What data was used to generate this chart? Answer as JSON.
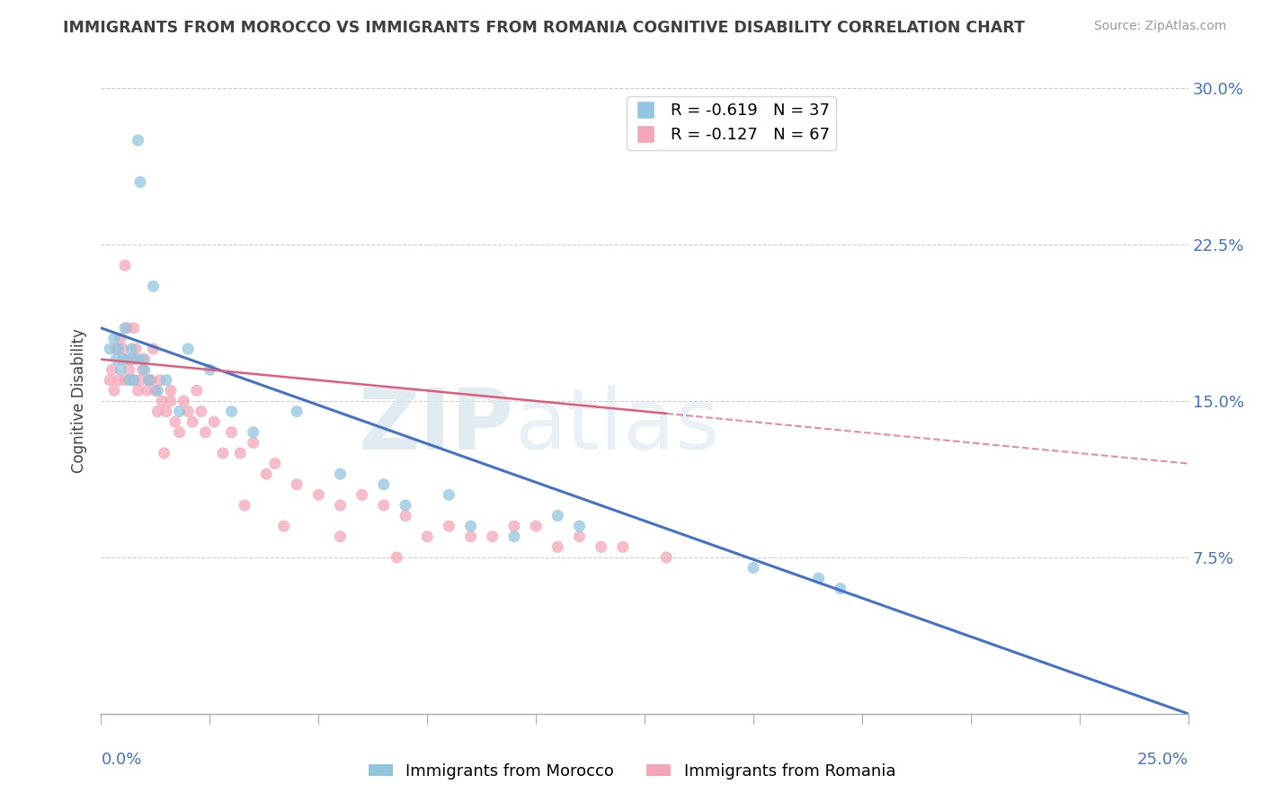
{
  "title": "IMMIGRANTS FROM MOROCCO VS IMMIGRANTS FROM ROMANIA COGNITIVE DISABILITY CORRELATION CHART",
  "source": "Source: ZipAtlas.com",
  "ylabel": "Cognitive Disability",
  "xlim": [
    0.0,
    25.0
  ],
  "ylim": [
    0.0,
    30.0
  ],
  "yticks_right": [
    7.5,
    15.0,
    22.5,
    30.0
  ],
  "ytick_labels_right": [
    "7.5%",
    "15.0%",
    "22.5%",
    "30.0%"
  ],
  "morocco_color": "#92c5de",
  "romania_color": "#f4a6b8",
  "morocco_line_color": "#4472c4",
  "romania_line_color": "#e05c7a",
  "morocco_label": "Immigrants from Morocco",
  "romania_label": "Immigrants from Romania",
  "morocco_R": -0.619,
  "morocco_N": 37,
  "romania_R": -0.127,
  "romania_N": 67,
  "morocco_line_y_start": 18.5,
  "morocco_line_y_end": 0.0,
  "romania_line_y_start": 17.0,
  "romania_line_y_end_solid": 13.5,
  "romania_line_x_solid_end": 13.0,
  "romania_line_y_end_dashed": 12.0,
  "grid_color": "#cccccc",
  "watermark_zip": "ZIP",
  "watermark_atlas": "atlas",
  "axis_label_color": "#4472c4",
  "title_color": "#404040",
  "morocco_x": [
    0.2,
    0.3,
    0.35,
    0.4,
    0.45,
    0.5,
    0.55,
    0.6,
    0.65,
    0.7,
    0.75,
    0.8,
    0.85,
    0.9,
    0.95,
    1.0,
    1.1,
    1.2,
    1.3,
    1.5,
    1.8,
    2.0,
    2.5,
    3.0,
    3.5,
    4.5,
    5.5,
    6.5,
    7.0,
    8.0,
    8.5,
    9.5,
    10.5,
    11.0,
    15.0,
    16.5,
    17.0
  ],
  "morocco_y": [
    17.5,
    18.0,
    17.0,
    17.5,
    16.5,
    17.0,
    18.5,
    17.0,
    16.0,
    17.5,
    16.0,
    17.0,
    27.5,
    25.5,
    17.0,
    16.5,
    16.0,
    20.5,
    15.5,
    16.0,
    14.5,
    17.5,
    16.5,
    14.5,
    13.5,
    14.5,
    11.5,
    11.0,
    10.0,
    10.5,
    9.0,
    8.5,
    9.5,
    9.0,
    7.0,
    6.5,
    6.0
  ],
  "romania_x": [
    0.2,
    0.25,
    0.3,
    0.35,
    0.4,
    0.45,
    0.5,
    0.55,
    0.6,
    0.65,
    0.7,
    0.75,
    0.8,
    0.85,
    0.9,
    0.95,
    1.0,
    1.05,
    1.1,
    1.15,
    1.2,
    1.25,
    1.3,
    1.35,
    1.4,
    1.5,
    1.6,
    1.7,
    1.8,
    1.9,
    2.0,
    2.1,
    2.2,
    2.4,
    2.6,
    2.8,
    3.0,
    3.2,
    3.5,
    3.8,
    4.0,
    4.5,
    5.0,
    5.5,
    6.0,
    6.5,
    7.0,
    8.0,
    8.5,
    9.0,
    9.5,
    10.0,
    10.5,
    11.0,
    11.5,
    12.0,
    13.0,
    7.5,
    5.5,
    6.8,
    4.2,
    3.3,
    2.3,
    1.6,
    0.75,
    1.45,
    0.55
  ],
  "romania_y": [
    16.0,
    16.5,
    15.5,
    17.5,
    16.0,
    18.0,
    17.5,
    16.0,
    18.5,
    16.5,
    17.0,
    16.0,
    17.5,
    15.5,
    16.0,
    16.5,
    17.0,
    15.5,
    16.0,
    16.0,
    17.5,
    15.5,
    14.5,
    16.0,
    15.0,
    14.5,
    15.5,
    14.0,
    13.5,
    15.0,
    14.5,
    14.0,
    15.5,
    13.5,
    14.0,
    12.5,
    13.5,
    12.5,
    13.0,
    11.5,
    12.0,
    11.0,
    10.5,
    10.0,
    10.5,
    10.0,
    9.5,
    9.0,
    8.5,
    8.5,
    9.0,
    9.0,
    8.0,
    8.5,
    8.0,
    8.0,
    7.5,
    8.5,
    8.5,
    7.5,
    9.0,
    10.0,
    14.5,
    15.0,
    18.5,
    12.5,
    21.5
  ]
}
